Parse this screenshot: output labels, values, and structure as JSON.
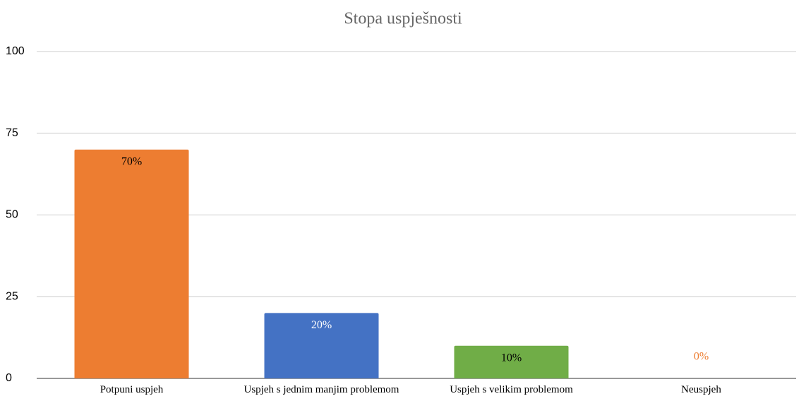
{
  "chart_data": {
    "type": "bar",
    "title": "Stopa uspješnosti",
    "categories": [
      "Potpuni uspjeh",
      "Uspjeh s jednim manjim problemom",
      "Uspjeh s velikim problemom",
      "Neuspjeh"
    ],
    "values": [
      70,
      20,
      10,
      0
    ],
    "value_labels": [
      "70%",
      "20%",
      "10%",
      "0%"
    ],
    "colors": [
      "#ed7d31",
      "#4472c4",
      "#70ad47",
      "#ed7d31"
    ],
    "label_colors": [
      "#000000",
      "#ffffff",
      "#000000",
      "#ed7d31"
    ],
    "ylim": [
      0,
      100
    ],
    "yticks": [
      0,
      25,
      50,
      75,
      100
    ],
    "grid": true
  }
}
